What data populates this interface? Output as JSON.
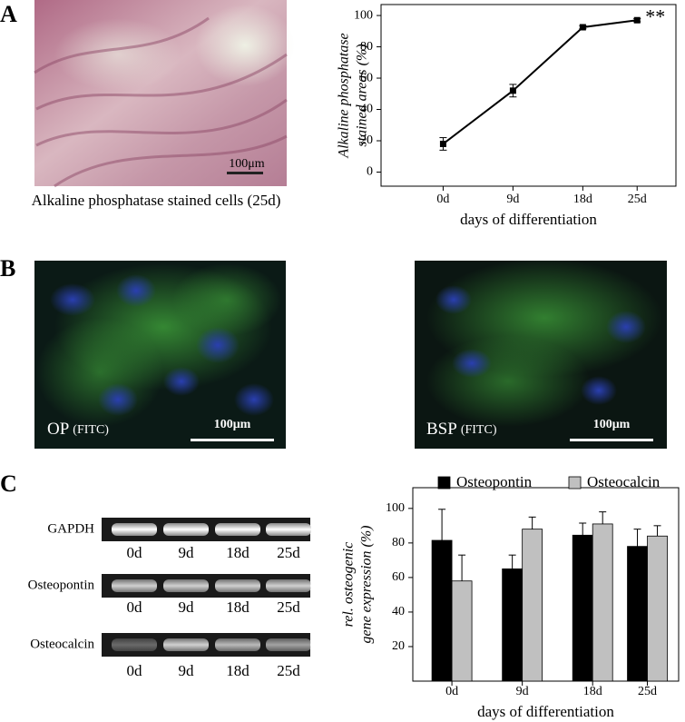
{
  "panels": {
    "a": "A",
    "b": "B",
    "c": "C"
  },
  "panel_a": {
    "caption": "Alkaline phosphatase stained cells (25d)",
    "scale_bar": "100μm"
  },
  "panel_b": {
    "images": [
      {
        "label": "OP",
        "stain": "(FITC)",
        "scale_bar": "100μm"
      },
      {
        "label": "BSP",
        "stain": "(FITC)",
        "scale_bar": "100μm"
      }
    ]
  },
  "panel_c": {
    "gels": [
      {
        "label": "GAPDH",
        "lanes": [
          "0d",
          "9d",
          "18d",
          "25d"
        ]
      },
      {
        "label": "Osteopontin",
        "lanes": [
          "0d",
          "9d",
          "18d",
          "25d"
        ]
      },
      {
        "label": "Osteocalcin",
        "lanes": [
          "0d",
          "9d",
          "18d",
          "25d"
        ]
      }
    ]
  },
  "chart_data": [
    {
      "type": "line",
      "ylabel": [
        "Alkaline phosphatase",
        "stained areas (%)"
      ],
      "xlabel": "days of differentiation",
      "annotation": "**",
      "x": [
        0,
        9,
        18,
        25
      ],
      "values": [
        18,
        52,
        92.5,
        97
      ],
      "errors": [
        4,
        4,
        1,
        1
      ],
      "color": "#000000",
      "xlim": [
        -8,
        30
      ],
      "xticks": [
        {
          "value": 0,
          "label": "0d"
        },
        {
          "value": 9,
          "label": "9d"
        },
        {
          "value": 18,
          "label": "18d"
        },
        {
          "value": 25,
          "label": "25d"
        }
      ],
      "ylim": [
        -9,
        107
      ],
      "yticks": [
        0,
        20,
        40,
        60,
        80,
        100
      ]
    },
    {
      "type": "bar",
      "ylabel": [
        "rel. osteogenic",
        "gene expression (%)"
      ],
      "xlabel": "days of differentiation",
      "legend": "top",
      "x": [
        0,
        9,
        18,
        25
      ],
      "series": [
        {
          "name": "Osteopontin",
          "color": "#000000",
          "values": [
            81.5,
            65,
            84.5,
            78
          ],
          "errors": [
            18,
            8,
            7,
            10
          ]
        },
        {
          "name": "Osteocalcin",
          "color": "#c0c0c0",
          "values": [
            58,
            88,
            91,
            84
          ],
          "errors": [
            15,
            7,
            7,
            6
          ]
        }
      ],
      "xlim": [
        -5,
        29
      ],
      "xticks": [
        {
          "value": 0,
          "label": "0d"
        },
        {
          "value": 9,
          "label": "9d"
        },
        {
          "value": 18,
          "label": "18d"
        },
        {
          "value": 25,
          "label": "25d"
        }
      ],
      "ylim": [
        0,
        112
      ],
      "yticks": [
        20,
        40,
        60,
        80,
        100
      ]
    }
  ]
}
